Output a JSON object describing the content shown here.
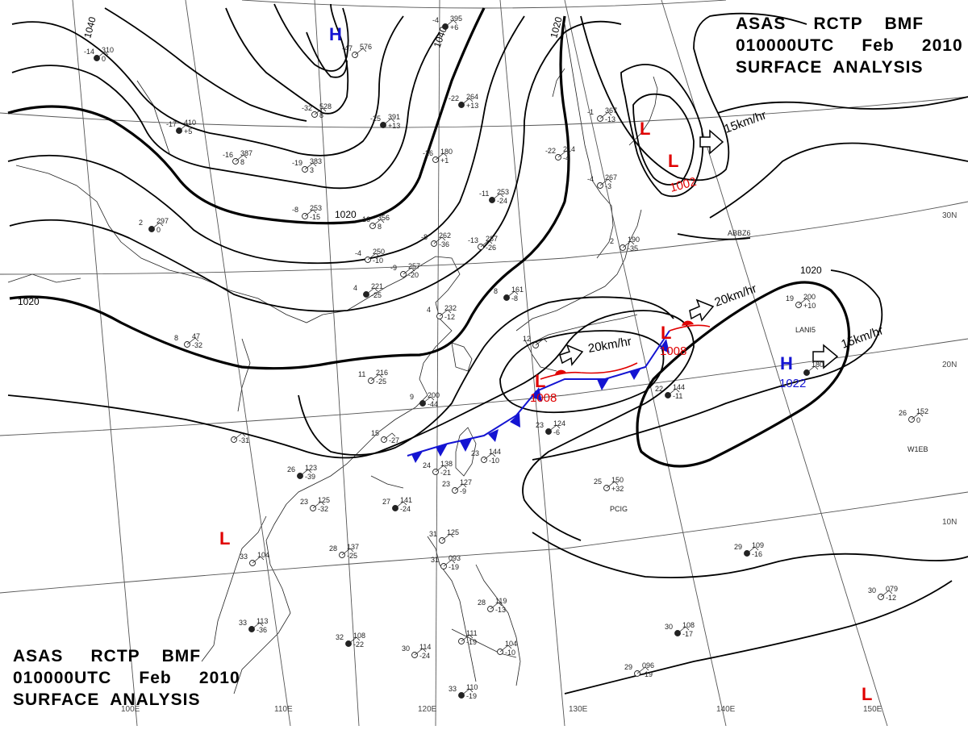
{
  "header": {
    "line1": "ASAS     RCTP    BMF",
    "line2": "010000UTC     Feb     2010",
    "line3": "SURFACE  ANALYSIS"
  },
  "isobar_labels": [
    "1040",
    "1040",
    "1020",
    "1020",
    "1020",
    "1020"
  ],
  "grid_labels": {
    "lon": [
      "100E",
      "110E",
      "120E",
      "130E",
      "140E",
      "150E"
    ],
    "lat": [
      "30N",
      "20N",
      "10N"
    ]
  },
  "systems": [
    {
      "id": "L1",
      "type": "L",
      "pressure": ""
    },
    {
      "id": "L2",
      "type": "L",
      "pressure": "1002"
    },
    {
      "id": "L3",
      "type": "L",
      "pressure": "1008"
    },
    {
      "id": "L4",
      "type": "L",
      "pressure": "1008"
    },
    {
      "id": "L5",
      "type": "L",
      "pressure": ""
    },
    {
      "id": "L6",
      "type": "L",
      "pressure": ""
    },
    {
      "id": "H1",
      "type": "H",
      "pressure": ""
    },
    {
      "id": "H2",
      "type": "H",
      "pressure": "1022"
    }
  ],
  "movements": [
    "15km/hr",
    "20km/hr",
    "20km/hr",
    "15km/hr"
  ],
  "station_codes": [
    "ABBZ6",
    "LANI5",
    "W1EB",
    "PCIG"
  ],
  "stations": [
    {
      "t": "-14",
      "p": "310",
      "r": "0"
    },
    {
      "t": "-47",
      "p": "576",
      "r": ""
    },
    {
      "t": "-32",
      "p": "528",
      "r": "8"
    },
    {
      "t": "-17",
      "p": "410",
      "r": "+5"
    },
    {
      "t": "-16",
      "p": "387",
      "r": "8"
    },
    {
      "t": "-19",
      "p": "383",
      "r": "3"
    },
    {
      "t": "-25",
      "p": "391",
      "r": "+13"
    },
    {
      "t": "-8",
      "p": "253",
      "r": "-15"
    },
    {
      "t": "-16",
      "p": "356",
      "r": "8"
    },
    {
      "t": "-22",
      "p": "264",
      "r": "+13"
    },
    {
      "t": "-26",
      "p": "180",
      "r": "+1"
    },
    {
      "t": "-22",
      "p": "214",
      "r": "-4"
    },
    {
      "t": "-11",
      "p": "253",
      "r": "-24"
    },
    {
      "t": "-8",
      "p": "262",
      "r": "-36"
    },
    {
      "t": "-13",
      "p": "287",
      "r": "-26"
    },
    {
      "t": "-4",
      "p": "395",
      "r": "+6"
    },
    {
      "t": "-1",
      "p": "367",
      "r": "-13"
    },
    {
      "t": "-4",
      "p": "267",
      "r": "-3"
    },
    {
      "t": "2",
      "p": "297",
      "r": "0"
    },
    {
      "t": "-4",
      "p": "250",
      "r": "-10"
    },
    {
      "t": "-9",
      "p": "257",
      "r": "-20"
    },
    {
      "t": "4",
      "p": "221",
      "r": "-25"
    },
    {
      "t": "4",
      "p": "232",
      "r": "-12"
    },
    {
      "t": "2",
      "p": "190",
      "r": "-35"
    },
    {
      "t": "8",
      "p": "161",
      "r": "-8"
    },
    {
      "t": "8",
      "p": "47",
      "r": "-32"
    },
    {
      "t": "11",
      "p": "216",
      "r": "-25"
    },
    {
      "t": "9",
      "p": "200",
      "r": "-44"
    },
    {
      "t": "15",
      "p": "",
      "r": "-27"
    },
    {
      "t": "",
      "p": "",
      "r": "-31"
    },
    {
      "t": "26",
      "p": "123",
      "r": "-39"
    },
    {
      "t": "23",
      "p": "125",
      "r": "-32"
    },
    {
      "t": "24",
      "p": "138",
      "r": "-21"
    },
    {
      "t": "27",
      "p": "141",
      "r": "-24"
    },
    {
      "t": "23",
      "p": "127",
      "r": "-9"
    },
    {
      "t": "23",
      "p": "144",
      "r": "-10"
    },
    {
      "t": "23",
      "p": "124",
      "r": "-6"
    },
    {
      "t": "12",
      "p": "",
      "r": ""
    },
    {
      "t": "19",
      "p": "200",
      "r": "+10"
    },
    {
      "t": "22",
      "p": "144",
      "r": "-11"
    },
    {
      "t": "26",
      "p": "152",
      "r": "0"
    },
    {
      "t": "25",
      "p": "150",
      "r": "+32"
    },
    {
      "t": "29",
      "p": "109",
      "r": "-16"
    },
    {
      "t": "28",
      "p": "137",
      "r": "-25"
    },
    {
      "t": "33",
      "p": "104",
      "r": ""
    },
    {
      "t": "33",
      "p": "113",
      "r": "-36"
    },
    {
      "t": "31",
      "p": "125",
      "r": ""
    },
    {
      "t": "31",
      "p": "093",
      "r": "-19"
    },
    {
      "t": "32",
      "p": "108",
      "r": "-22"
    },
    {
      "t": "30",
      "p": "114",
      "r": "-24"
    },
    {
      "t": "28",
      "p": "119",
      "r": "-13"
    },
    {
      "t": "30",
      "p": "108",
      "r": "-17"
    },
    {
      "t": "30",
      "p": "079",
      "r": "-12"
    },
    {
      "t": "29",
      "p": "096",
      "r": "-19"
    },
    {
      "t": "33",
      "p": "110",
      "r": "-19"
    },
    {
      "t": "",
      "p": "104",
      "r": "-10"
    },
    {
      "t": "",
      "p": "111",
      "r": "-19"
    },
    {
      "t": "",
      "p": "180",
      "r": ""
    }
  ],
  "colors": {
    "low": "#e00000",
    "high": "#1414d2",
    "cold_front": "#1414d2",
    "warm_front": "#e00000",
    "isobar": "#000000",
    "grid": "#555555"
  }
}
